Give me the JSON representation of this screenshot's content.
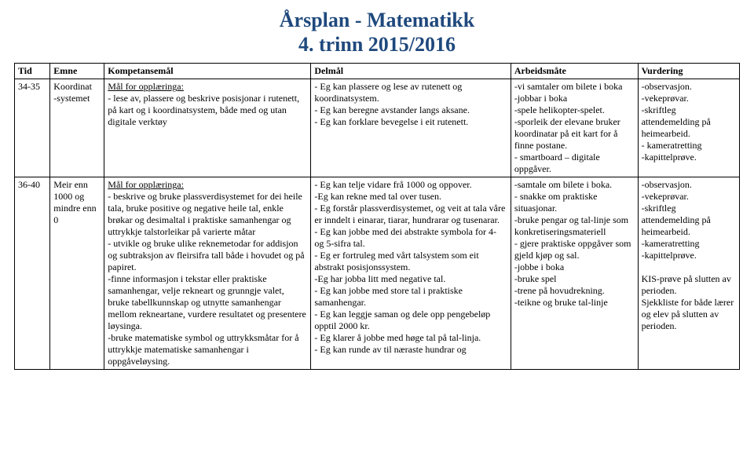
{
  "title": {
    "line1": "Årsplan - Matematikk",
    "line2": "4. trinn 2015/2016",
    "color": "#1f497d",
    "fontsize": 26,
    "fontweight": "bold"
  },
  "table": {
    "columns": [
      "Tid",
      "Emne",
      "Kompetansemål",
      "Delmål",
      "Arbeidsmåte",
      "Vurdering"
    ],
    "rows": [
      {
        "tid": "34-35",
        "emne": "Koordinat\n-systemet",
        "komp_lead": "Mål for opplæringa:",
        "komp": "- lese av, plassere og beskrive posisjonar i rutenett, på kart og i koordinatsystem, både med og utan digitale verktøy",
        "del": "- Eg kan plassere og lese av rutenett og koordinatsystem.\n- Eg kan beregne avstander langs aksane.\n- Eg kan forklare bevegelse i eit rutenett.",
        "arb": "-vi samtaler om bilete i boka\n-jobbar i boka\n-spele helikopter-spelet.\n-sporleik der elevane bruker koordinatar på eit kart for å finne postane.\n- smartboard – digitale oppgåver.",
        "vurd": "-observasjon.\n-vekeprøvar.\n-skriftleg attendemelding på heimearbeid.\n- kameratretting\n-kapittelprøve."
      },
      {
        "tid": "36-40",
        "emne": "Meir enn 1000 og mindre enn 0",
        "komp_lead": "Mål for opplæringa:",
        "komp": "- beskrive og bruke plassverdisystemet for dei heile tala, bruke positive og negative heile tal, enkle brøkar og desimaltal i praktiske samanhengar og uttrykkje talstorleikar på varierte måtar\n- utvikle og bruke ulike reknemetodar for addisjon og subtraksjon av fleirsifra tall både i hovudet og på papiret.\n-finne informasjon i tekstar eller praktiske samanhengar, velje rekneart og grunngje valet, bruke tabellkunnskap og utnytte samanhengar mellom rekneartane, vurdere resultatet og presentere løysinga.\n-bruke matematiske symbol og uttrykksmåtar for å uttrykkje matematiske samanhengar i oppgåveløysing.",
        "del": "- Eg kan telje vidare frå 1000 og oppover.\n-Eg kan rekne med tal over tusen.\n- Eg forstår plassverdisystemet, og veit at tala våre er inndelt i einarar, tiarar, hundrarar og tusenarar.\n- Eg kan jobbe med dei abstrakte symbola for 4- og 5-sifra tal.\n- Eg er fortruleg med vårt talsystem som eit abstrakt posisjonssystem.\n-Eg har jobba litt med negative tal.\n- Eg kan jobbe med store tal i praktiske samanhengar.\n- Eg kan leggje saman og  dele opp pengebeløp opptil 2000 kr.\n- Eg klarer å jobbe med høge tal på tal-linja.\n- Eg kan runde av til næraste hundrar og",
        "arb": "-samtale om bilete i boka.\n- snakke om praktiske situasjonar.\n-bruke pengar og tal-linje som konkretiseringsmateriell\n- gjere praktiske oppgåver som gjeld kjøp og sal.\n-jobbe i boka\n-bruke spel\n-trene på hovudrekning.\n-teikne og bruke tal-linje",
        "vurd": "-observasjon.\n-vekeprøvar.\n-skriftleg attendemelding på heimearbeid.\n-kameratretting\n-kapittelprøve.\n\nKIS-prøve på slutten av perioden.\nSjekkliste for både lærer og elev på slutten av perioden."
      }
    ]
  }
}
